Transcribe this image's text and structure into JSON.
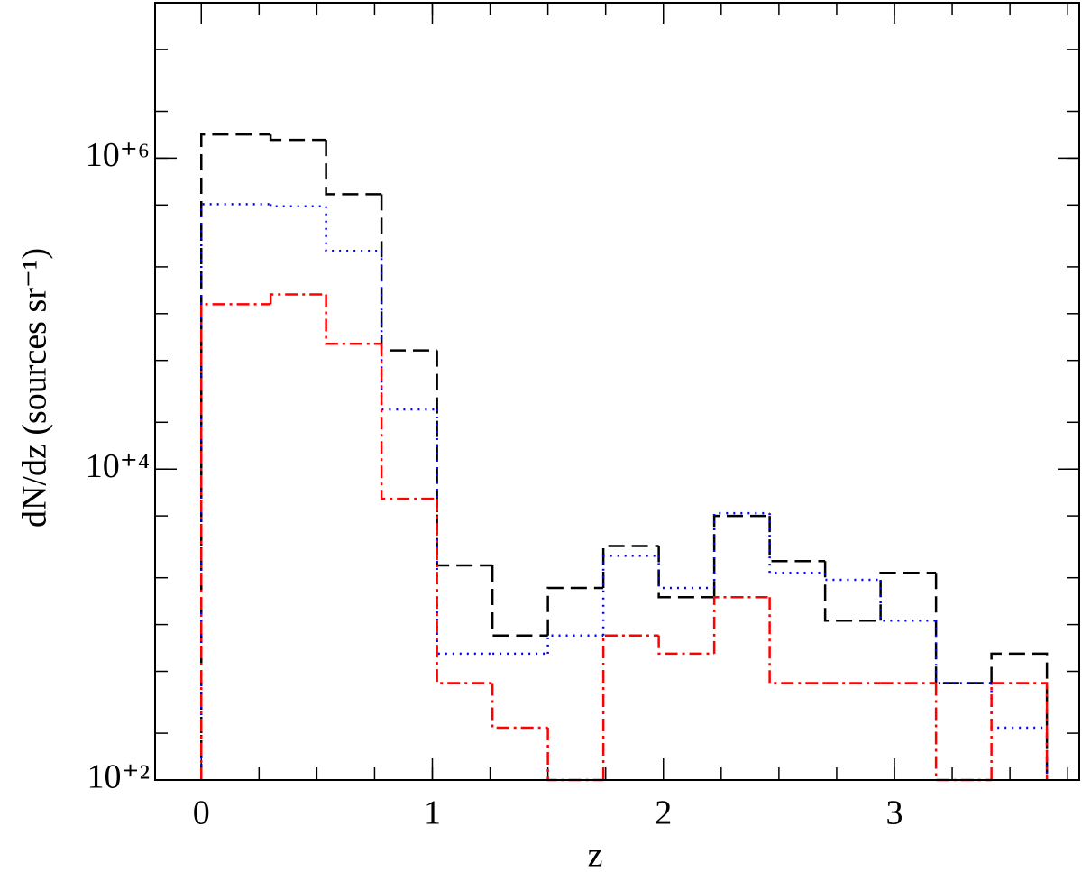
{
  "chart_data": {
    "type": "histogram",
    "xlabel": "z",
    "ylabel": "dN/dz  (sources sr⁻¹)",
    "xlim": [
      -0.2,
      3.8
    ],
    "xticks": [
      0,
      1,
      2,
      3
    ],
    "ylim": [
      100,
      10000000
    ],
    "log_y": true,
    "yticks": [
      {
        "value": 100,
        "label": "10⁺²"
      },
      {
        "value": 10000,
        "label": "10⁺⁴"
      },
      {
        "value": 1000000,
        "label": "10⁺⁶"
      }
    ],
    "bins": [
      0,
      0.3,
      0.54,
      0.78,
      1.02,
      1.26,
      1.5,
      1.74,
      1.98,
      2.22,
      2.46,
      2.7,
      2.94,
      3.18,
      3.42,
      3.66
    ],
    "series": [
      {
        "color": "#000000",
        "dash": "18,8",
        "values": [
          1420000,
          1310000,
          586000,
          58000,
          2400,
          850,
          1720,
          3200,
          1500,
          5000,
          2560,
          1060,
          2150,
          420,
          650
        ]
      },
      {
        "color": "#0000ff",
        "dash": "2,6",
        "values": [
          506000,
          490000,
          253000,
          24200,
          650,
          650,
          850,
          2770,
          1720,
          5200,
          2150,
          1940,
          1060,
          420,
          217
        ]
      },
      {
        "color": "#ff0000",
        "dash": "14,5,3,5",
        "values": [
          115000,
          133000,
          64000,
          6440,
          420,
          217,
          null,
          850,
          650,
          1500,
          420,
          420,
          420,
          null,
          420
        ]
      }
    ]
  }
}
